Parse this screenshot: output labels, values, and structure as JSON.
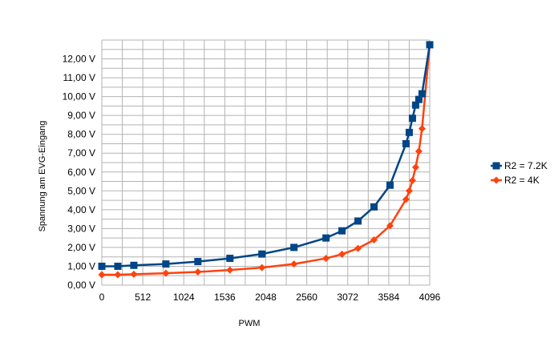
{
  "chart_data": {
    "type": "line",
    "xlabel": "PWM",
    "ylabel": "Spannung am EVG-Eingang",
    "xlim": [
      0,
      4096
    ],
    "ylim": [
      0,
      13
    ],
    "grid": true,
    "legend_position": "right",
    "x_ticks": [
      0,
      512,
      1024,
      1536,
      2048,
      2560,
      3072,
      3584,
      4096
    ],
    "x_tick_labels": [
      "0",
      "512",
      "1024",
      "1536",
      "2048",
      "2560",
      "3072",
      "3584",
      "4096"
    ],
    "y_ticks": [
      0,
      1,
      2,
      3,
      4,
      5,
      6,
      7,
      8,
      9,
      10,
      11,
      12
    ],
    "y_tick_labels": [
      "0,00 V",
      "1,00 V",
      "2,00 V",
      "3,00 V",
      "4,00 V",
      "5,00 V",
      "6,00 V",
      "7,00 V",
      "8,00 V",
      "9,00 V",
      "10,00 V",
      "11,00 V",
      "12,00 V"
    ],
    "series": [
      {
        "name": "R2 = 7.2K",
        "color": "#004586",
        "marker": "square",
        "x": [
          0,
          200,
          400,
          800,
          1200,
          1600,
          2000,
          2400,
          2800,
          3000,
          3200,
          3400,
          3600,
          3800,
          3840,
          3880,
          3920,
          3960,
          4000,
          4096
        ],
        "y": [
          1.0,
          1.0,
          1.05,
          1.12,
          1.25,
          1.42,
          1.65,
          2.0,
          2.5,
          2.88,
          3.4,
          4.15,
          5.3,
          7.5,
          8.1,
          8.85,
          9.55,
          9.85,
          10.15,
          12.75
        ]
      },
      {
        "name": "R2 = 4K",
        "color": "#ff420e",
        "marker": "diamond",
        "x": [
          0,
          200,
          400,
          800,
          1200,
          1600,
          2000,
          2400,
          2800,
          3000,
          3200,
          3400,
          3600,
          3800,
          3840,
          3880,
          3920,
          3960,
          4000,
          4096
        ],
        "y": [
          0.55,
          0.55,
          0.58,
          0.63,
          0.7,
          0.8,
          0.93,
          1.12,
          1.42,
          1.64,
          1.95,
          2.4,
          3.15,
          4.55,
          5.0,
          5.55,
          6.25,
          7.1,
          8.3,
          12.75
        ]
      }
    ]
  }
}
